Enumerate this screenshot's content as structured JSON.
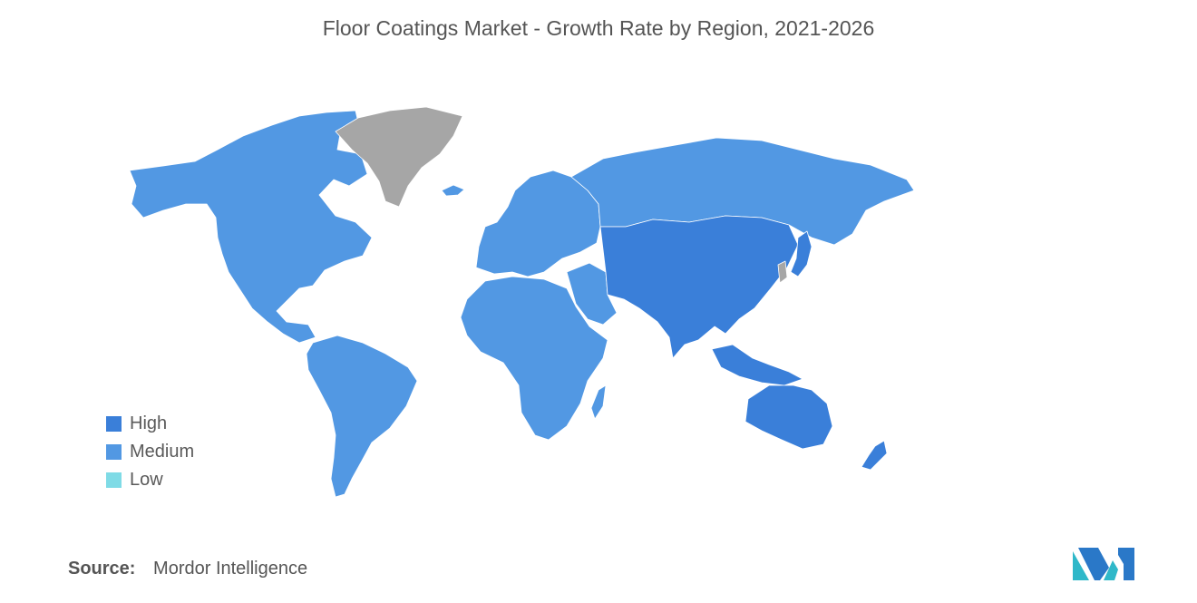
{
  "title": "Floor Coatings Market - Growth Rate by Region, 2021-2026",
  "legend": [
    {
      "label": "High",
      "color": "#3a7fd9"
    },
    {
      "label": "Medium",
      "color": "#5298e3"
    },
    {
      "label": "Low",
      "color": "#7fdbe6"
    }
  ],
  "no_data_color": "#a6a6a6",
  "regions": [
    {
      "name": "North America",
      "level": "Medium"
    },
    {
      "name": "South America",
      "level": "Medium"
    },
    {
      "name": "Europe",
      "level": "Medium"
    },
    {
      "name": "Africa",
      "level": "Medium"
    },
    {
      "name": "Middle East",
      "level": "Medium"
    },
    {
      "name": "Russia",
      "level": "Medium"
    },
    {
      "name": "Asia-Pacific",
      "level": "High"
    },
    {
      "name": "Australia",
      "level": "High"
    },
    {
      "name": "New Zealand",
      "level": "High"
    }
  ],
  "source": {
    "label": "Source:",
    "value": "Mordor Intelligence"
  },
  "logo": {
    "icon": "mordor-intelligence-logo"
  }
}
